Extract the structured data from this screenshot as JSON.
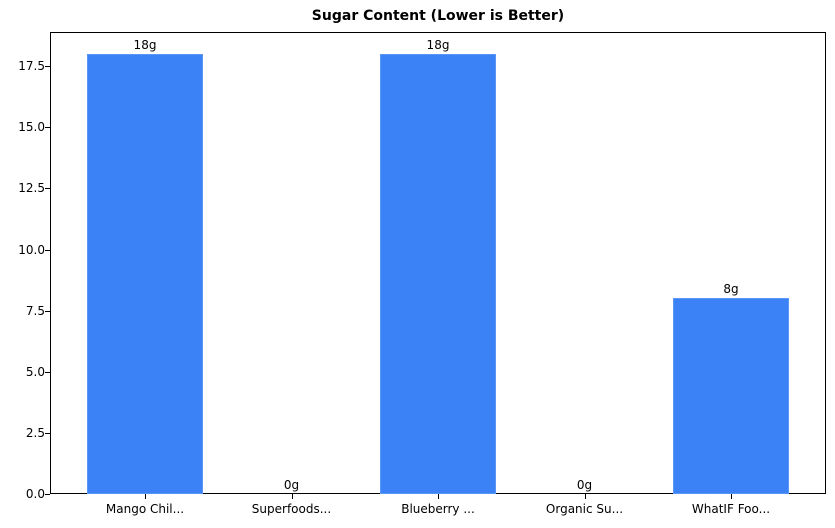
{
  "chart_data": {
    "type": "bar",
    "title": "Sugar Content (Lower is Better)",
    "xlabel": "",
    "ylabel": "",
    "categories": [
      "Mango Chil...",
      "Superfoods...",
      "Blueberry ...",
      "Organic Su...",
      "WhatIF Foo..."
    ],
    "values": [
      18,
      0,
      18,
      0,
      8
    ],
    "value_labels": [
      "18g",
      "0g",
      "18g",
      "0g",
      "8g"
    ],
    "ylim": [
      0,
      18.9
    ],
    "yticks": [
      "0.0",
      "2.5",
      "5.0",
      "7.5",
      "10.0",
      "12.5",
      "15.0",
      "17.5"
    ],
    "grid": false,
    "legend": null,
    "bar_color": "#3b82f6"
  }
}
